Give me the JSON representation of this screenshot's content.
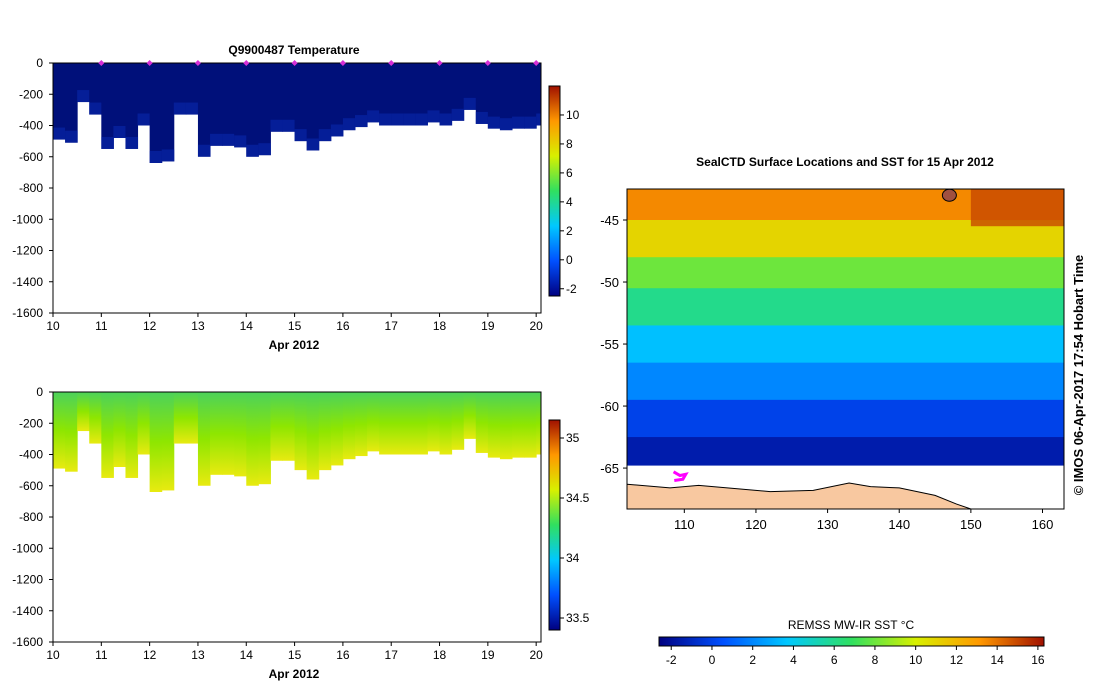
{
  "chart_data": [
    {
      "type": "heatmap",
      "title": "Q9900487  Temperature",
      "xlabel": "Apr 2012",
      "ylabel": "",
      "xlim": [
        10,
        20.1
      ],
      "ylim": [
        -1600,
        0
      ],
      "x_ticks": [
        "10",
        "11",
        "12",
        "13",
        "14",
        "15",
        "16",
        "17",
        "18",
        "19",
        "20"
      ],
      "y_ticks": [
        "0",
        "-200",
        "-400",
        "-600",
        "-800",
        "-1000",
        "-1200",
        "-1400",
        "-1600"
      ],
      "profile_x": [
        10,
        10.25,
        10.5,
        10.75,
        11,
        11.25,
        11.5,
        11.75,
        12,
        12.25,
        12.5,
        12.75,
        13,
        13.25,
        13.5,
        13.75,
        14,
        14.25,
        14.5,
        14.75,
        15,
        15.25,
        15.5,
        15.75,
        16,
        16.25,
        16.5,
        16.75,
        17,
        17.25,
        17.5,
        17.75,
        18,
        18.25,
        18.5,
        18.75,
        19,
        19.25,
        19.5,
        19.75,
        20
      ],
      "profile_bottom_depth": [
        -490,
        -510,
        -250,
        -330,
        -550,
        -480,
        -550,
        -400,
        -640,
        -630,
        -330,
        -330,
        -600,
        -530,
        -530,
        -540,
        -600,
        -590,
        -440,
        -440,
        -500,
        -560,
        -500,
        -470,
        -430,
        -410,
        -380,
        -400,
        -400,
        -400,
        -400,
        -380,
        -400,
        -370,
        -300,
        -390,
        -420,
        -430,
        -420,
        -420,
        -400
      ],
      "profile_dot_x": [
        11,
        12,
        13,
        14,
        15,
        16,
        17,
        18,
        19,
        20
      ],
      "profile_dot_color": "#d62fd6",
      "colorbar": {
        "min": -2.5,
        "max": 12,
        "ticks": [
          "-2",
          "0",
          "2",
          "4",
          "6",
          "8",
          "10"
        ],
        "stops": [
          "#000080",
          "#0050ff",
          "#00c8ff",
          "#30e060",
          "#d8f000",
          "#ff9800",
          "#a01000"
        ]
      },
      "field_color": "#00107a"
    },
    {
      "type": "heatmap",
      "title": "",
      "xlabel": "Apr 2012",
      "ylabel": "",
      "xlim": [
        10,
        20.1
      ],
      "ylim": [
        -1600,
        0
      ],
      "x_ticks": [
        "10",
        "11",
        "12",
        "13",
        "14",
        "15",
        "16",
        "17",
        "18",
        "19",
        "20"
      ],
      "y_ticks": [
        "0",
        "-200",
        "-400",
        "-600",
        "-800",
        "-1000",
        "-1200",
        "-1400",
        "-1600"
      ],
      "colorbar": {
        "min": 33.4,
        "max": 35.15,
        "ticks": [
          "33.5",
          "34",
          "34.5",
          "35"
        ],
        "stops": [
          "#000080",
          "#0050ff",
          "#00c8ff",
          "#30e060",
          "#d8f000",
          "#ff9800",
          "#a01000"
        ]
      },
      "surface_colors": [
        "#4cd25a",
        "#8ee600",
        "#e8ea10"
      ]
    },
    {
      "type": "heatmap",
      "title": "SealCTD Surface Locations and SST for 15 Apr 2012",
      "xlabel": "",
      "ylabel": "",
      "xlim": [
        102,
        163
      ],
      "ylim": [
        -68.3,
        -42.5
      ],
      "x_ticks": [
        "110",
        "120",
        "130",
        "140",
        "150",
        "160"
      ],
      "y_ticks": [
        "-45",
        "-50",
        "-55",
        "-60",
        "-65"
      ],
      "colorbar": {
        "label": "REMSS MW-IR SST °C",
        "min": -2.6,
        "max": 16.3,
        "ticks": [
          "-2",
          "0",
          "2",
          "4",
          "6",
          "8",
          "10",
          "12",
          "14",
          "16"
        ],
        "stops": [
          "#000080",
          "#0050ff",
          "#00c8ff",
          "#30e060",
          "#d8f000",
          "#ff9800",
          "#a01000"
        ]
      },
      "sst_bands": [
        {
          "lat": -43,
          "value": 13.5
        },
        {
          "lat": -47,
          "value": 11
        },
        {
          "lat": -49,
          "value": 8
        },
        {
          "lat": -52,
          "value": 6
        },
        {
          "lat": -55,
          "value": 3.5
        },
        {
          "lat": -58,
          "value": 2
        },
        {
          "lat": -61,
          "value": 0
        },
        {
          "lat": -64,
          "value": -1.5
        }
      ],
      "land_color": "#f8c8a0",
      "ice_color": "#ffffff",
      "seal_track_color": "#ff00ff",
      "seal_track": [
        [
          108.5,
          -65.3
        ],
        [
          109.4,
          -65.6
        ],
        [
          110.2,
          -65.5
        ],
        [
          109.8,
          -65.9
        ],
        [
          108.6,
          -66.0
        ]
      ]
    }
  ],
  "credit": "© IMOS 06-Apr-2017 17:54 Hobart Time"
}
